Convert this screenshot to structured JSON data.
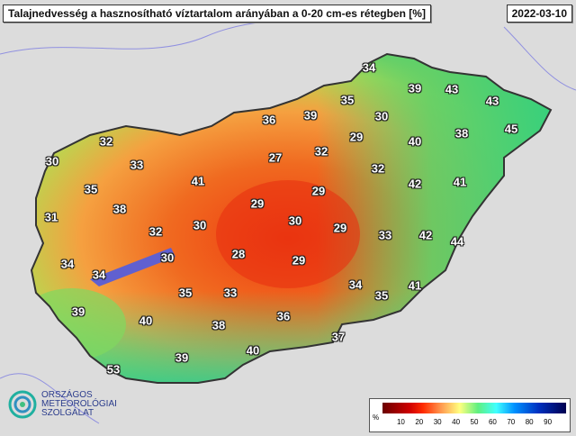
{
  "header": {
    "title": "Talajnedvesség a hasznosítható víztartalom arányában a 0-20 cm-es rétegben [%]",
    "date": "2022-03-10"
  },
  "map": {
    "labels": [
      "34",
      "39",
      "43",
      "43",
      "35",
      "39",
      "36",
      "30",
      "38",
      "45",
      "32",
      "29",
      "40",
      "27",
      "32",
      "30",
      "33",
      "32",
      "41",
      "42",
      "41",
      "35",
      "29",
      "29",
      "38",
      "31",
      "30",
      "29",
      "30",
      "32",
      "33",
      "42",
      "44",
      "28",
      "30",
      "29",
      "34",
      "34",
      "34",
      "41",
      "35",
      "35",
      "33",
      "39",
      "36",
      "40",
      "38",
      "37",
      "40",
      "39",
      "53"
    ]
  },
  "legend": {
    "unit": "%",
    "ticks": [
      "10",
      "20",
      "30",
      "40",
      "50",
      "60",
      "70",
      "80",
      "90"
    ],
    "range": [
      0,
      100
    ]
  },
  "logo": {
    "lines": [
      "ORSZÁGOS",
      "METEOROLÓGIAI",
      "SZOLGÁLAT"
    ]
  },
  "colors": {
    "dry": "#e03010",
    "mid": "#f5a040",
    "wet": "#40d070",
    "lake": "#6060d0"
  }
}
